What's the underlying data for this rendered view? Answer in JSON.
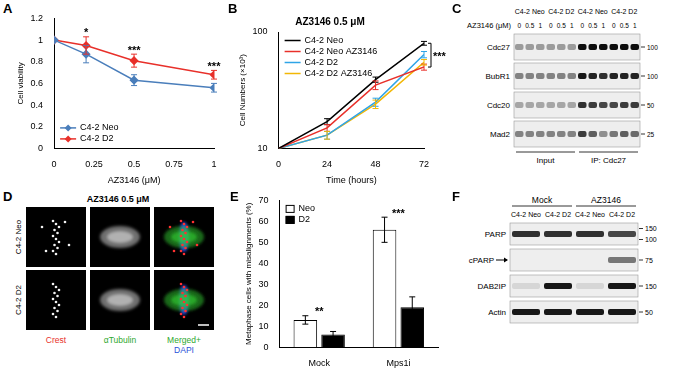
{
  "chart_data": [
    {
      "panel_label": "A",
      "type": "line",
      "x_label": "AZ3146 (μM)",
      "y_label": "Cell viability",
      "x": [
        0,
        0.2,
        0.5,
        1
      ],
      "xlim": [
        0,
        1
      ],
      "xticks": [
        0,
        0.25,
        0.5,
        0.75,
        1
      ],
      "ylim": [
        0,
        1.2
      ],
      "yticks": [
        0,
        0.2,
        0.4,
        0.6,
        0.8,
        1,
        1.2
      ],
      "series": [
        {
          "name": "C4-2 Neo",
          "color": "#4a7ebb",
          "marker": "diamond",
          "values": [
            1,
            0.87,
            0.63,
            0.56
          ],
          "errors": [
            0,
            0.08,
            0.05,
            0.04
          ]
        },
        {
          "name": "C4-2 D2",
          "color": "#e8302a",
          "marker": "diamond",
          "values": [
            1,
            0.95,
            0.81,
            0.68
          ],
          "errors": [
            0,
            0.08,
            0.06,
            0.04
          ]
        }
      ],
      "significance": [
        {
          "x": 0.2,
          "label": "*"
        },
        {
          "x": 0.5,
          "label": "***"
        },
        {
          "x": 1,
          "label": "***"
        }
      ],
      "legend": "lower left",
      "grid": false
    },
    {
      "panel_label": "B",
      "type": "line",
      "title": "AZ3146 0.5 μM",
      "x_label": "Time (hours)",
      "y_label": "Cell Numbers (×10³)",
      "x": [
        0,
        24,
        48,
        72
      ],
      "xlim": [
        0,
        72
      ],
      "xticks": [
        0,
        24,
        48,
        72
      ],
      "ylim": [
        10,
        100
      ],
      "yticks": [
        10,
        100
      ],
      "log": "y",
      "marker": "none",
      "series": [
        {
          "name": "C4-2 Neo",
          "color": "#000000",
          "values": [
            10,
            17,
            39,
            80
          ],
          "errors": [
            0,
            1,
            2,
            3
          ]
        },
        {
          "name": "C4-2 Neo AZ3146",
          "color": "#e8302a",
          "values": [
            10,
            15,
            35,
            50
          ],
          "errors": [
            0,
            1,
            3,
            3
          ]
        },
        {
          "name": "C4-2 D2",
          "color": "#2fa4e7",
          "values": [
            10,
            13,
            25,
            64
          ],
          "errors": [
            0,
            1,
            2,
            4
          ]
        },
        {
          "name": "C4-2 D2 AZ3146",
          "color": "#f2b705",
          "values": [
            10,
            13,
            24,
            55
          ],
          "errors": [
            0,
            1,
            2,
            3
          ]
        }
      ],
      "significance": [
        {
          "x": 72,
          "label": "***"
        }
      ],
      "legend": "upper left",
      "grid": false
    },
    {
      "panel_label": "E",
      "type": "bar",
      "y_label": "Metaphase cells with misalignments (%)",
      "categories": [
        "Mock",
        "Mps1i"
      ],
      "ylim": [
        0,
        70
      ],
      "yticks": [
        0,
        10,
        20,
        30,
        40,
        50,
        60,
        70
      ],
      "series": [
        {
          "name": "Neo",
          "color": "#ffffff",
          "values": [
            13,
            56
          ],
          "errors": [
            2,
            6
          ]
        },
        {
          "name": "D2",
          "color": "#000000",
          "values": [
            6,
            19
          ],
          "errors": [
            1.5,
            5
          ]
        }
      ],
      "significance": [
        {
          "category": "Mock",
          "label": "**"
        },
        {
          "category": "Mps1i",
          "label": "***"
        }
      ],
      "legend": "upper left",
      "grid": false
    }
  ],
  "blot_C": {
    "panel_label": "C",
    "cell_lines": [
      "C4-2 Neo",
      "C4-2 D2",
      "C4-2 Neo",
      "C4-2 D2"
    ],
    "treatment_label": "AZ3146 (μM)",
    "doses": [
      0,
      0.5,
      1
    ],
    "sections": [
      "Input",
      "IP: Cdc27"
    ],
    "rows": [
      {
        "name": "Cdc27",
        "size_markers": [
          100
        ],
        "intensity": [
          0.35,
          0.35,
          0.35,
          0.35,
          0.35,
          0.35,
          0.95,
          0.95,
          0.95,
          0.95,
          0.95,
          0.95
        ]
      },
      {
        "name": "BubR1",
        "size_markers": [
          100
        ],
        "intensity": [
          0.45,
          0.45,
          0.45,
          0.45,
          0.45,
          0.45,
          0.9,
          0.85,
          0.8,
          0.85,
          0.85,
          0.85
        ]
      },
      {
        "name": "Cdc20",
        "size_markers": [
          50
        ],
        "intensity": [
          0.3,
          0.3,
          0.3,
          0.3,
          0.3,
          0.3,
          0.8,
          0.75,
          0.7,
          0.7,
          0.75,
          0.75
        ]
      },
      {
        "name": "Mad2",
        "size_markers": [
          25
        ],
        "intensity": [
          0.45,
          0.45,
          0.45,
          0.45,
          0.45,
          0.45,
          0.75,
          0.6,
          0.4,
          0.5,
          0.6,
          0.55
        ]
      }
    ]
  },
  "micrograph_D": {
    "panel_label": "D",
    "title": "AZ3146 0.5 μM",
    "rows": [
      "C4-2 Neo",
      "C4-2 D2"
    ],
    "channels": [
      {
        "name": [
          "Crest"
        ],
        "colors": [
          "#e8302a"
        ]
      },
      {
        "name": [
          "αTubulin"
        ],
        "colors": [
          "#2ea82e"
        ]
      },
      {
        "name": [
          "Merged+",
          "DAPI"
        ],
        "colors": [
          "#2ea82e",
          "#2850d8"
        ]
      }
    ]
  },
  "blot_F": {
    "panel_label": "F",
    "treatments": [
      "Mock",
      "AZ3146"
    ],
    "cell_lines": [
      "C4-2 Neo",
      "C4-2 D2",
      "C4-2 Neo",
      "C4-2 D2"
    ],
    "rows": [
      {
        "name": "PARP",
        "size_markers": [
          150,
          100
        ],
        "intensity": [
          0.8,
          0.8,
          0.8,
          0.7
        ]
      },
      {
        "name": "cPARP",
        "arrow": true,
        "size_markers": [
          75
        ],
        "intensity": [
          0,
          0,
          0,
          0.5
        ]
      },
      {
        "name": "DAB2IP",
        "size_markers": [
          150
        ],
        "intensity": [
          0.1,
          0.9,
          0.1,
          0.9
        ]
      },
      {
        "name": "Actin",
        "size_markers": [
          50
        ],
        "intensity": [
          0.9,
          0.9,
          0.9,
          0.9
        ]
      }
    ]
  }
}
